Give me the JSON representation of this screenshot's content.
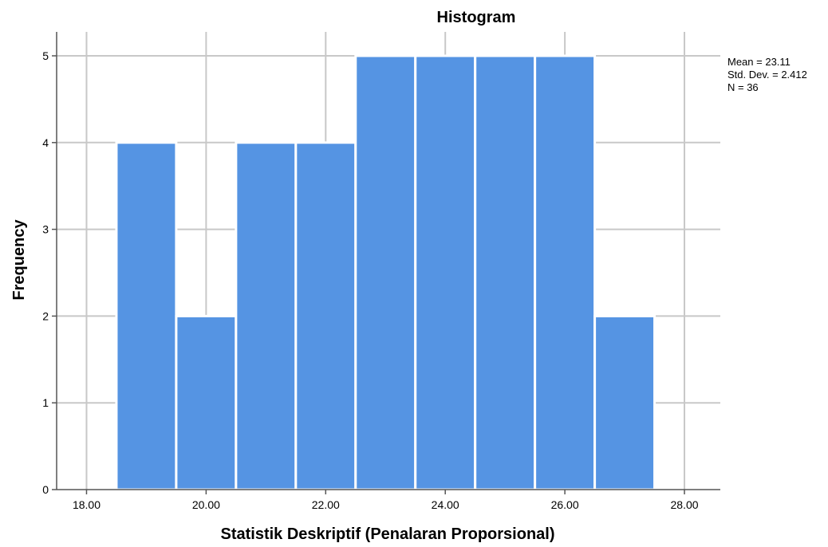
{
  "chart_data": {
    "type": "bar",
    "title": "Histogram",
    "xlabel": "Statistik Deskriptif (Penalaran Proporsional)",
    "ylabel": "Frequency",
    "bins": [
      {
        "from": 18.5,
        "to": 19.5,
        "count": 4
      },
      {
        "from": 19.5,
        "to": 20.5,
        "count": 2
      },
      {
        "from": 20.5,
        "to": 21.5,
        "count": 4
      },
      {
        "from": 21.5,
        "to": 22.5,
        "count": 4
      },
      {
        "from": 22.5,
        "to": 23.5,
        "count": 5
      },
      {
        "from": 23.5,
        "to": 24.5,
        "count": 5
      },
      {
        "from": 24.5,
        "to": 25.5,
        "count": 5
      },
      {
        "from": 25.5,
        "to": 26.5,
        "count": 5
      },
      {
        "from": 26.5,
        "to": 27.5,
        "count": 2
      }
    ],
    "xlim": [
      17.5,
      28.6
    ],
    "ylim": [
      0,
      5.25
    ],
    "xticks": [
      "18.00",
      "20.00",
      "22.00",
      "24.00",
      "26.00",
      "28.00"
    ],
    "xtick_values": [
      18,
      20,
      22,
      24,
      26,
      28
    ],
    "yticks": [
      0,
      1,
      2,
      3,
      4,
      5
    ],
    "vertical_grid_values": [
      18,
      20,
      22,
      24,
      26,
      28
    ],
    "grid": true,
    "bar_color": "#5594e3",
    "stats": {
      "mean": "Mean = 23.11",
      "std_dev": "Std. Dev. = 2.412",
      "n": "N = 36"
    }
  }
}
